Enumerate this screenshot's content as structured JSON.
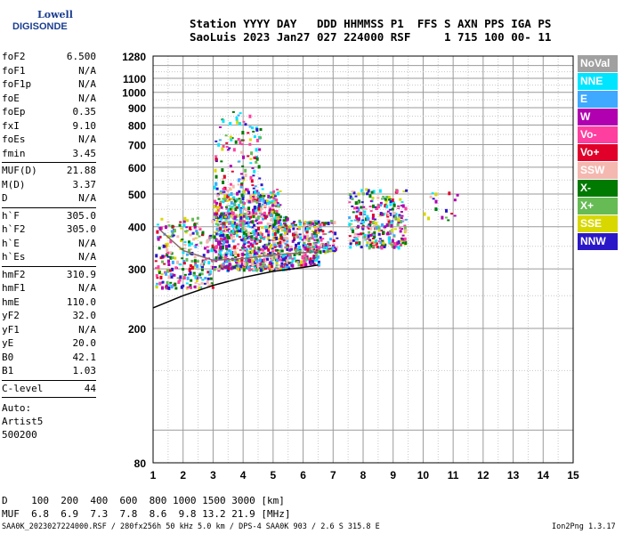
{
  "logo": {
    "line1": "Lowell",
    "line2": "DIGISONDE"
  },
  "header": {
    "line1": "Station YYYY DAY   DDD HHMMSS P1  FFS S AXN PPS IGA PS",
    "line2": "SaoLuis 2023 Jan27 027 224000 RSF     1 715 100 00- 11"
  },
  "params": [
    [
      {
        "k": "foF2",
        "v": "6.500"
      },
      {
        "k": "foF1",
        "v": "N/A"
      },
      {
        "k": "foF1p",
        "v": "N/A"
      },
      {
        "k": "foE",
        "v": "N/A"
      },
      {
        "k": "foEp",
        "v": "0.35"
      },
      {
        "k": "fxI",
        "v": "9.10"
      },
      {
        "k": "foEs",
        "v": "N/A"
      },
      {
        "k": "fmin",
        "v": "3.45"
      }
    ],
    [
      {
        "k": "MUF(D)",
        "v": "21.88"
      },
      {
        "k": "M(D)",
        "v": "3.37"
      },
      {
        "k": "D",
        "v": "N/A"
      }
    ],
    [
      {
        "k": "h`F",
        "v": "305.0"
      },
      {
        "k": "h`F2",
        "v": "305.0"
      },
      {
        "k": "h`E",
        "v": "N/A"
      },
      {
        "k": "h`Es",
        "v": "N/A"
      }
    ],
    [
      {
        "k": "hmF2",
        "v": "310.9"
      },
      {
        "k": "hmF1",
        "v": "N/A"
      },
      {
        "k": "hmE",
        "v": "110.0"
      },
      {
        "k": "yF2",
        "v": "32.0"
      },
      {
        "k": "yF1",
        "v": "N/A"
      },
      {
        "k": "yE",
        "v": "20.0"
      },
      {
        "k": "B0",
        "v": "42.1"
      },
      {
        "k": "B1",
        "v": "1.03"
      }
    ],
    [
      {
        "k": "C-level",
        "v": "44"
      }
    ]
  ],
  "auto": {
    "l1": "Auto:",
    "l2": "Artist5",
    "l3": "500200"
  },
  "legend": [
    {
      "label": "NoVal",
      "color": "#a0a0a0"
    },
    {
      "label": "NNE",
      "color": "#00e5ff"
    },
    {
      "label": "E",
      "color": "#3fa9ff"
    },
    {
      "label": "W",
      "color": "#b000b0"
    },
    {
      "label": "Vo-",
      "color": "#ff3fa0"
    },
    {
      "label": "Vo+",
      "color": "#e0002a"
    },
    {
      "label": "SSW",
      "color": "#f4b8b0"
    },
    {
      "label": "X-",
      "color": "#007a00"
    },
    {
      "label": "X+",
      "color": "#66bb55"
    },
    {
      "label": "SSE",
      "color": "#d8d800"
    },
    {
      "label": "NNW",
      "color": "#2a18c8"
    }
  ],
  "footer": {
    "d_line": "D    100  200  400  600  800 1000 1500 3000 [km]",
    "muf_line": "MUF  6.8  6.9  7.3  7.8  8.6  9.8 13.2 21.9 [MHz]",
    "file_line": "SAA0K_2023027224000.RSF / 280fx256h 50 kHz 5.0 km / DPS-4 SAA0K 903 / 2.6 S 315.8 E",
    "version": "Ion2Png 1.3.17"
  },
  "chart_data": {
    "type": "scatter",
    "xlim": [
      1,
      15
    ],
    "ylim": [
      80,
      1280
    ],
    "yscale": "log",
    "x_ticks": [
      1,
      2,
      3,
      4,
      5,
      6,
      7,
      8,
      9,
      10,
      11,
      12,
      13,
      14,
      15
    ],
    "y_ticks": [
      80,
      200,
      300,
      400,
      500,
      600,
      700,
      800,
      900,
      1000,
      1100,
      1280
    ],
    "grid": true,
    "clusters": [
      {
        "x": [
          1.05,
          3.0
        ],
        "y": [
          265,
          430
        ],
        "weight": 260
      },
      {
        "x": [
          3.0,
          5.5
        ],
        "y": [
          300,
          440
        ],
        "weight": 700
      },
      {
        "x": [
          3.0,
          5.2
        ],
        "y": [
          430,
          520
        ],
        "weight": 260
      },
      {
        "x": [
          3.0,
          4.6
        ],
        "y": [
          520,
          880
        ],
        "weight": 110
      },
      {
        "x": [
          5.5,
          6.5
        ],
        "y": [
          310,
          420
        ],
        "weight": 150
      },
      {
        "x": [
          6.0,
          7.1
        ],
        "y": [
          340,
          420
        ],
        "weight": 120
      },
      {
        "x": [
          7.5,
          9.4
        ],
        "y": [
          350,
          520
        ],
        "weight": 300
      },
      {
        "x": [
          9.9,
          11.3
        ],
        "y": [
          420,
          510
        ],
        "weight": 18
      }
    ],
    "lines": [
      {
        "name": "profile",
        "color": "#000000",
        "points": [
          [
            1.0,
            230
          ],
          [
            2.0,
            250
          ],
          [
            3.0,
            268
          ],
          [
            4.0,
            283
          ],
          [
            5.0,
            295
          ],
          [
            6.0,
            303
          ],
          [
            6.5,
            308
          ]
        ]
      },
      {
        "name": "trace",
        "color": "#8a6a6a",
        "points": [
          [
            1.25,
            390
          ],
          [
            2.0,
            340
          ],
          [
            3.0,
            318
          ],
          [
            4.0,
            322
          ],
          [
            5.0,
            330
          ],
          [
            6.0,
            335
          ],
          [
            6.5,
            338
          ]
        ]
      }
    ]
  }
}
